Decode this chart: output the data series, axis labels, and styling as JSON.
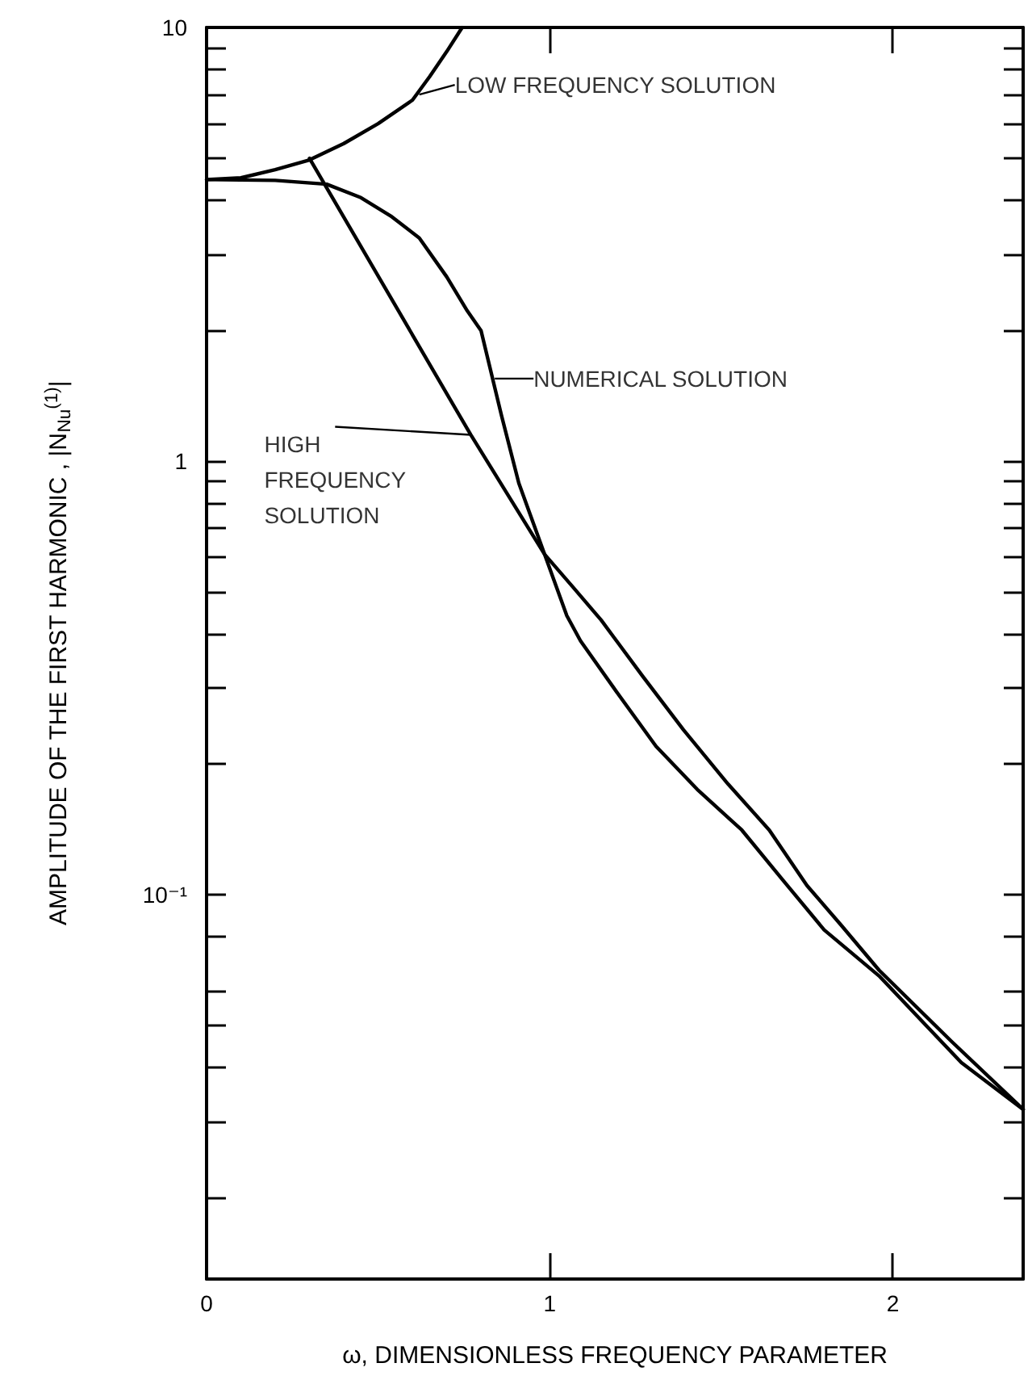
{
  "chart_data": {
    "type": "line",
    "xlabel": "ω, DIMENSIONLESS FREQUENCY PARAMETER",
    "ylabel": "AMPLITUDE OF THE FIRST HARMONIC , |N$_{Nu}$$^{(1)}$|",
    "log": "y",
    "grid": false,
    "marker": "none",
    "line_style": "solid",
    "xlim": [
      0,
      2.38
    ],
    "xticks": [
      0,
      1,
      2
    ],
    "ylim": [
      0.013,
      10
    ],
    "yticks": [
      {
        "value": 0.02,
        "label": null
      },
      {
        "value": 0.03,
        "label": null
      },
      {
        "value": 0.04,
        "label": null
      },
      {
        "value": 0.05,
        "label": null
      },
      {
        "value": 0.06,
        "label": null
      },
      {
        "value": 0.08,
        "label": null
      },
      {
        "value": 0.1,
        "label": "10⁻¹"
      },
      {
        "value": 0.2,
        "label": null
      },
      {
        "value": 0.3,
        "label": null
      },
      {
        "value": 0.4,
        "label": null
      },
      {
        "value": 0.5,
        "label": null
      },
      {
        "value": 0.6,
        "label": null
      },
      {
        "value": 0.7,
        "label": null
      },
      {
        "value": 0.8,
        "label": null
      },
      {
        "value": 0.9,
        "label": null
      },
      1,
      {
        "value": 2,
        "label": null
      },
      {
        "value": 3,
        "label": null
      },
      {
        "value": 4,
        "label": null
      },
      {
        "value": 5,
        "label": null
      },
      {
        "value": 6,
        "label": null
      },
      {
        "value": 7,
        "label": null
      },
      {
        "value": 8,
        "label": null
      },
      {
        "value": 9,
        "label": null
      },
      10
    ],
    "series": [
      {
        "color": "#000000",
        "x": [
          0,
          0.1,
          0.2,
          0.3,
          0.4,
          0.5,
          0.6,
          0.65,
          0.7,
          0.745
        ],
        "values": [
          4.46,
          4.5,
          4.7,
          4.95,
          5.4,
          6.0,
          6.8,
          7.7,
          8.8,
          10
        ]
      },
      {
        "color": "#000000",
        "x": [
          0,
          0.2,
          0.35,
          0.45,
          0.54,
          0.62,
          0.7,
          0.76,
          0.8,
          0.86,
          0.91,
          0.985,
          1.05,
          1.09,
          1.2,
          1.31,
          1.43,
          1.56,
          1.68,
          1.8,
          1.96,
          2.2,
          2.38
        ],
        "values": [
          4.46,
          4.44,
          4.35,
          4.05,
          3.66,
          3.27,
          2.66,
          2.22,
          2.0,
          1.27,
          0.89,
          0.61,
          0.44,
          0.385,
          0.29,
          0.22,
          0.175,
          0.141,
          0.108,
          0.083,
          0.065,
          0.041,
          0.032
        ]
      },
      {
        "color": "#000000",
        "x": [
          0.3,
          0.77,
          0.985,
          1.07,
          1.15,
          1.27,
          1.39,
          1.52,
          1.64,
          1.75,
          1.85,
          1.96,
          2.17,
          2.38
        ],
        "values": [
          4.99,
          1.15,
          0.61,
          0.51,
          0.43,
          0.32,
          0.24,
          0.18,
          0.141,
          0.105,
          0.085,
          0.067,
          0.046,
          0.032
        ]
      }
    ],
    "annotations": [
      {
        "text": "LOW FREQUENCY SOLUTION",
        "x": 0.62,
        "y": 7.0
      },
      {
        "text": "NUMERICAL SOLUTION",
        "x": 0.84,
        "y": 1.55
      },
      {
        "text": "HIGH\nFREQUENCY\nSOLUTION",
        "x": 0.77,
        "y": 1.15
      }
    ]
  }
}
